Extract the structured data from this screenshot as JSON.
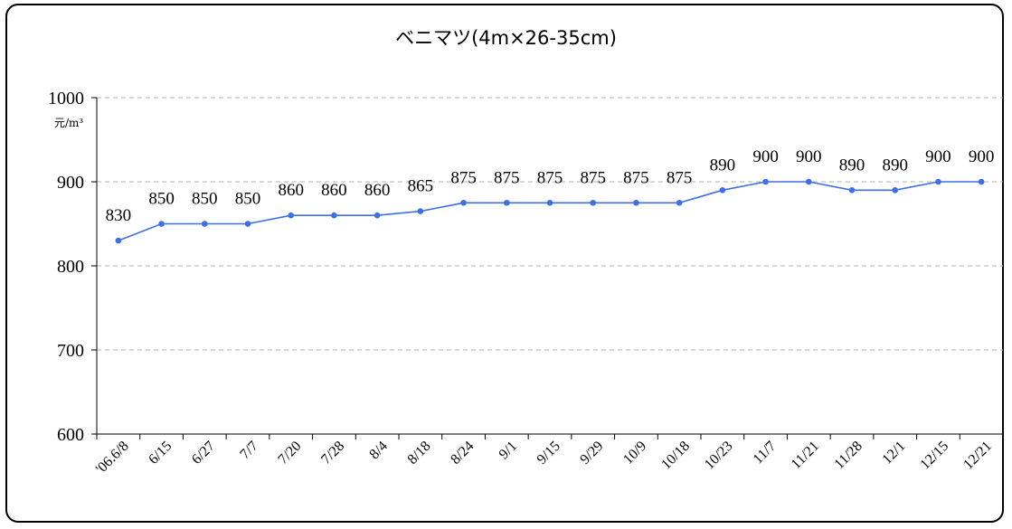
{
  "chart_data": {
    "type": "line",
    "title": "ベニマツ(4m×26-35cm)",
    "unit_label": "元/m³",
    "xlabel": "",
    "ylabel": "",
    "ylim": [
      600,
      1000
    ],
    "yticks": [
      600,
      700,
      800,
      900,
      1000
    ],
    "grid": true,
    "categories": [
      "'06.6/8",
      "6/15",
      "6/27",
      "7/7",
      "7/20",
      "7/28",
      "8/4",
      "8/18",
      "8/24",
      "9/1",
      "9/15",
      "9/29",
      "10/9",
      "10/18",
      "10/23",
      "11/7",
      "11/21",
      "11/28",
      "12/1",
      "12/15",
      "12/21"
    ],
    "series": [
      {
        "values": [
          830,
          850,
          850,
          850,
          860,
          860,
          860,
          865,
          875,
          875,
          875,
          875,
          875,
          875,
          890,
          900,
          900,
          890,
          890,
          900,
          900
        ],
        "color": "#3f6ee8"
      }
    ]
  }
}
